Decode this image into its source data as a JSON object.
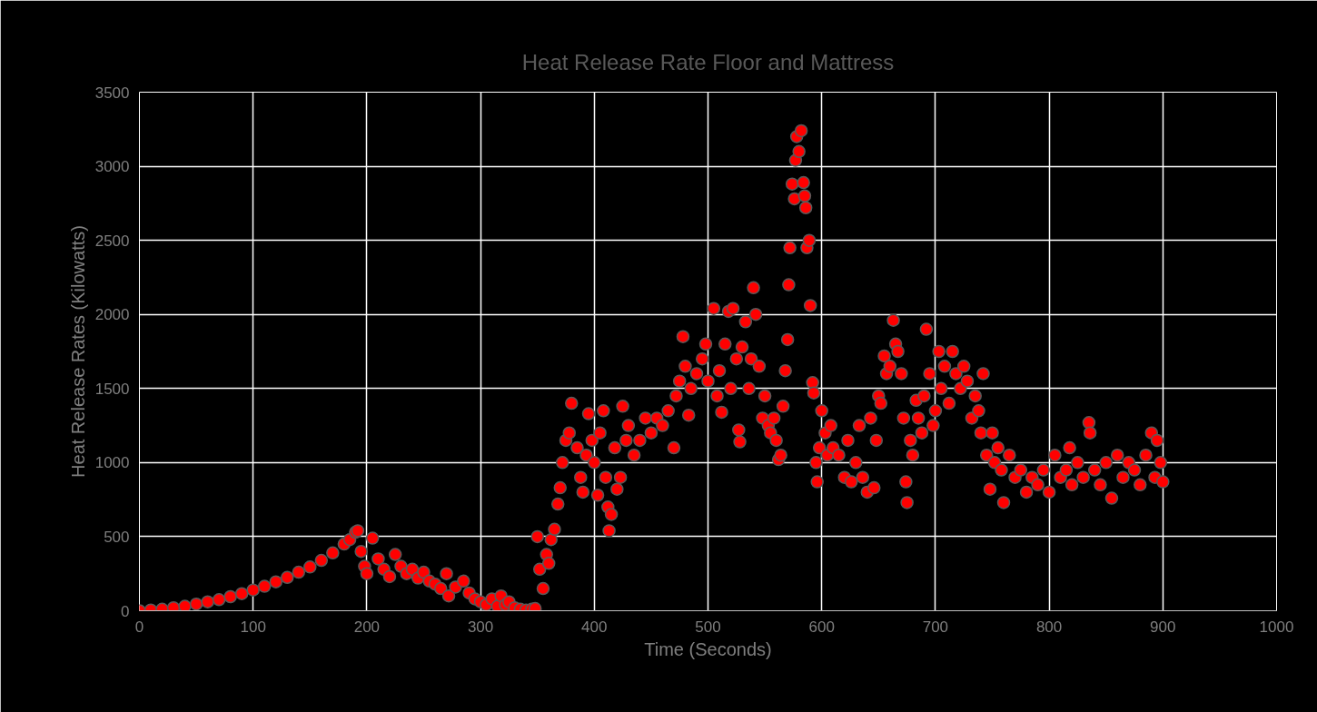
{
  "chart_data": {
    "type": "scatter",
    "title": "Heat Release Rate Floor and Mattress",
    "xlabel": "Time (Seconds)",
    "ylabel": "Heat Release Rates (Kilowatts)",
    "xlim": [
      0,
      1000
    ],
    "xticks": [
      0,
      100,
      200,
      300,
      400,
      500,
      600,
      700,
      800,
      900,
      1000
    ],
    "ylim": [
      0,
      3500
    ],
    "yticks": [
      0,
      500,
      1000,
      1500,
      2000,
      2500,
      3000,
      3500
    ],
    "grid": true,
    "marker": "circle",
    "series": [
      {
        "color": "#ff0000",
        "x": [
          0,
          10,
          20,
          30,
          40,
          50,
          60,
          70,
          80,
          90,
          100,
          110,
          120,
          130,
          140,
          150,
          160,
          170,
          180,
          185,
          190,
          192,
          195,
          198,
          200,
          205,
          210,
          215,
          220,
          225,
          230,
          235,
          240,
          245,
          250,
          255,
          260,
          265,
          270,
          272,
          278,
          285,
          290,
          295,
          300,
          305,
          310,
          315,
          318,
          322,
          325,
          330,
          335,
          340,
          345,
          348,
          350,
          352,
          355,
          358,
          360,
          362,
          365,
          368,
          370,
          372,
          375,
          378,
          380,
          385,
          388,
          390,
          393,
          395,
          398,
          400,
          403,
          405,
          408,
          410,
          412,
          413,
          415,
          418,
          420,
          423,
          425,
          428,
          430,
          435,
          440,
          445,
          450,
          455,
          460,
          465,
          470,
          472,
          475,
          478,
          480,
          483,
          485,
          490,
          495,
          498,
          500,
          505,
          508,
          510,
          512,
          515,
          518,
          520,
          522,
          525,
          527,
          528,
          530,
          533,
          536,
          538,
          540,
          542,
          545,
          548,
          550,
          553,
          555,
          558,
          560,
          562,
          564,
          566,
          568,
          570,
          571,
          572,
          574,
          576,
          577,
          578,
          580,
          582,
          584,
          585,
          586,
          587,
          589,
          590,
          592,
          593,
          595,
          596,
          598,
          600,
          603,
          605,
          608,
          610,
          615,
          620,
          623,
          626,
          630,
          633,
          636,
          640,
          643,
          646,
          648,
          650,
          652,
          655,
          657,
          660,
          663,
          665,
          667,
          670,
          672,
          674,
          675,
          678,
          680,
          683,
          685,
          688,
          690,
          692,
          695,
          698,
          700,
          703,
          705,
          708,
          712,
          715,
          718,
          722,
          725,
          728,
          732,
          735,
          738,
          740,
          742,
          745,
          748,
          750,
          752,
          755,
          758,
          760,
          765,
          770,
          775,
          780,
          785,
          790,
          795,
          800,
          805,
          810,
          815,
          818,
          820,
          825,
          830,
          835,
          836,
          840,
          845,
          850,
          855,
          860,
          865,
          870,
          875,
          880,
          885,
          890,
          893,
          895,
          898,
          900
        ],
        "values": [
          0,
          5,
          10,
          20,
          30,
          45,
          60,
          75,
          95,
          115,
          140,
          165,
          195,
          225,
          260,
          295,
          340,
          390,
          450,
          480,
          530,
          540,
          400,
          300,
          250,
          490,
          350,
          280,
          230,
          380,
          300,
          250,
          280,
          220,
          260,
          200,
          180,
          150,
          250,
          100,
          160,
          200,
          120,
          80,
          60,
          40,
          80,
          30,
          100,
          40,
          60,
          20,
          10,
          5,
          10,
          15,
          500,
          280,
          150,
          380,
          320,
          480,
          550,
          720,
          830,
          1000,
          1150,
          1200,
          1400,
          1100,
          900,
          800,
          1050,
          1330,
          1150,
          1000,
          780,
          1200,
          1350,
          900,
          700,
          540,
          650,
          1100,
          820,
          900,
          1380,
          1150,
          1250,
          1050,
          1150,
          1300,
          1200,
          1300,
          1250,
          1350,
          1100,
          1450,
          1550,
          1850,
          1650,
          1320,
          1500,
          1600,
          1700,
          1800,
          1550,
          2040,
          1450,
          1620,
          1340,
          1800,
          2020,
          1500,
          2040,
          1700,
          1220,
          1140,
          1780,
          1950,
          1500,
          1700,
          2180,
          2000,
          1650,
          1300,
          1450,
          1250,
          1200,
          1300,
          1150,
          1020,
          1050,
          1380,
          1620,
          1830,
          2200,
          2450,
          2880,
          2780,
          3040,
          3200,
          3100,
          3240,
          2890,
          2800,
          2720,
          2450,
          2500,
          2060,
          1540,
          1470,
          1000,
          870,
          1100,
          1350,
          1200,
          1050,
          1250,
          1100,
          1050,
          900,
          1150,
          870,
          1000,
          1250,
          900,
          800,
          1300,
          830,
          1150,
          1450,
          1400,
          1720,
          1600,
          1650,
          1960,
          1800,
          1750,
          1600,
          1300,
          870,
          730,
          1150,
          1050,
          1420,
          1300,
          1200,
          1450,
          1900,
          1600,
          1250,
          1350,
          1750,
          1500,
          1650,
          1400,
          1750,
          1600,
          1500,
          1650,
          1550,
          1300,
          1450,
          1350,
          1200,
          1600,
          1050,
          820,
          1200,
          1000,
          1100,
          950,
          730,
          1050,
          900,
          950,
          800,
          900,
          850,
          950,
          800,
          1050,
          900,
          950,
          1100,
          850,
          1000,
          900,
          1270,
          1200,
          950,
          850,
          1000,
          760,
          1050,
          900,
          1000,
          950,
          850,
          1050,
          1200,
          900,
          1150,
          1000,
          870
        ]
      }
    ]
  }
}
